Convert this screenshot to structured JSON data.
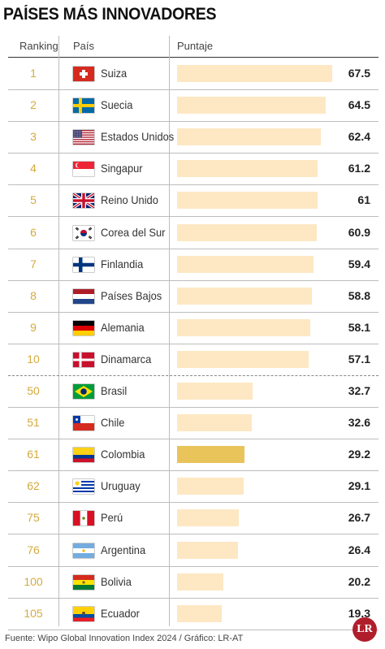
{
  "title": "PAÍSES MÁS INNOVADORES",
  "header": {
    "ranking": "Ranking",
    "pais": "País",
    "puntaje": "Puntaje"
  },
  "footer": "Fuente: Wipo Global Innovation Index 2024 / Gráfico: LR-AT",
  "logo": "LR",
  "colors": {
    "bar": "#fde8c3",
    "highlight": "#e9c45b",
    "rank": "#d4aa3e"
  },
  "chart_data": {
    "type": "bar",
    "orientation": "horizontal",
    "highlight": "Colombia",
    "rows": [
      {
        "rank": "1",
        "country": "Suiza",
        "flag": "switzerland-flag-icon",
        "value": 67.5,
        "label": "67.5"
      },
      {
        "rank": "2",
        "country": "Suecia",
        "flag": "sweden-flag-icon",
        "value": 64.5,
        "label": "64.5"
      },
      {
        "rank": "3",
        "country": "Estados Unidos",
        "flag": "usa-flag-icon",
        "value": 62.4,
        "label": "62.4"
      },
      {
        "rank": "4",
        "country": "Singapur",
        "flag": "singapore-flag-icon",
        "value": 61.2,
        "label": "61.2"
      },
      {
        "rank": "5",
        "country": "Reino Unido",
        "flag": "uk-flag-icon",
        "value": 61,
        "label": "61"
      },
      {
        "rank": "6",
        "country": "Corea del Sur",
        "flag": "korea-flag-icon",
        "value": 60.9,
        "label": "60.9"
      },
      {
        "rank": "7",
        "country": "Finlandia",
        "flag": "finland-flag-icon",
        "value": 59.4,
        "label": "59.4"
      },
      {
        "rank": "8",
        "country": "Países Bajos",
        "flag": "netherlands-flag-icon",
        "value": 58.8,
        "label": "58.8"
      },
      {
        "rank": "9",
        "country": "Alemania",
        "flag": "germany-flag-icon",
        "value": 58.1,
        "label": "58.1"
      },
      {
        "rank": "10",
        "country": "Dinamarca",
        "flag": "denmark-flag-icon",
        "value": 57.1,
        "label": "57.1"
      },
      {
        "rank": "50",
        "country": "Brasil",
        "flag": "brazil-flag-icon",
        "value": 32.7,
        "label": "32.7"
      },
      {
        "rank": "51",
        "country": "Chile",
        "flag": "chile-flag-icon",
        "value": 32.6,
        "label": "32.6"
      },
      {
        "rank": "61",
        "country": "Colombia",
        "flag": "colombia-flag-icon",
        "value": 29.2,
        "label": "29.2"
      },
      {
        "rank": "62",
        "country": "Uruguay",
        "flag": "uruguay-flag-icon",
        "value": 29.1,
        "label": "29.1"
      },
      {
        "rank": "75",
        "country": "Perú",
        "flag": "peru-flag-icon",
        "value": 26.7,
        "label": "26.7"
      },
      {
        "rank": "76",
        "country": "Argentina",
        "flag": "argentina-flag-icon",
        "value": 26.4,
        "label": "26.4"
      },
      {
        "rank": "100",
        "country": "Bolivia",
        "flag": "bolivia-flag-icon",
        "value": 20.2,
        "label": "20.2"
      },
      {
        "rank": "105",
        "country": "Ecuador",
        "flag": "ecuador-flag-icon",
        "value": 19.3,
        "label": "19.3"
      }
    ]
  }
}
